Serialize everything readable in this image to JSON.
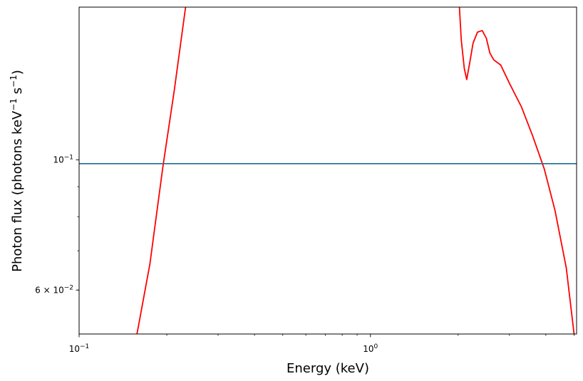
{
  "chart_data": {
    "type": "line",
    "xlabel": "Energy (keV)",
    "ylabel_main": "Photon flux (photons keV",
    "ylabel_sup1": "−1",
    "ylabel_mid": " s",
    "ylabel_sup2": "−1",
    "ylabel_end": ")",
    "xscale": "log",
    "yscale": "log",
    "xlim": [
      0.1,
      5.1
    ],
    "ylim": [
      0.0505,
      0.182
    ],
    "x_ticks": [
      {
        "value": 0.1,
        "base": "10",
        "exp": "−1"
      },
      {
        "value": 1.0,
        "base": "10",
        "exp": "0"
      }
    ],
    "y_ticks": [
      {
        "value": 0.1,
        "coef": "",
        "base": "10",
        "exp": "−1"
      },
      {
        "value": 0.06,
        "coef": "6 × ",
        "base": "10",
        "exp": "−2"
      }
    ],
    "x_minor_ticks": [
      0.2,
      0.3,
      0.4,
      0.5,
      0.6,
      0.7,
      0.8,
      0.9,
      2,
      3,
      4,
      5
    ],
    "y_minor_ticks": [
      0.06,
      0.07,
      0.08,
      0.09
    ],
    "series": [
      {
        "color": "#ff0000",
        "segments": [
          [
            [
              0.158,
              0.0505
            ],
            [
              0.175,
              0.0665
            ],
            [
              0.194,
              0.0975
            ],
            [
              0.212,
              0.131
            ],
            [
              0.232,
              0.182
            ]
          ],
          [
            [
              2.02,
              0.182
            ],
            [
              2.05,
              0.16
            ],
            [
              2.1,
              0.143
            ],
            [
              2.14,
              0.137
            ],
            [
              2.19,
              0.146
            ],
            [
              2.25,
              0.158
            ],
            [
              2.33,
              0.165
            ],
            [
              2.42,
              0.166
            ],
            [
              2.5,
              0.161
            ],
            [
              2.57,
              0.152
            ],
            [
              2.65,
              0.148
            ],
            [
              2.8,
              0.145
            ],
            [
              3.0,
              0.135
            ],
            [
              3.3,
              0.123
            ],
            [
              3.6,
              0.11
            ],
            [
              3.95,
              0.0965
            ],
            [
              4.3,
              0.082
            ],
            [
              4.7,
              0.0655
            ],
            [
              5.0,
              0.0505
            ]
          ]
        ]
      },
      {
        "color": "#1f6e8c",
        "hline": 0.0985
      }
    ]
  }
}
